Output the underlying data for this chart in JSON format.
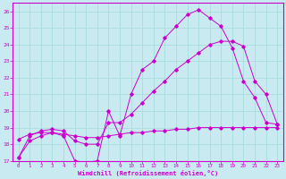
{
  "title": "",
  "xlabel": "Windchill (Refroidissement éolien,°C)",
  "ylabel": "",
  "bg_color": "#c8eaf0",
  "grid_color": "#aadddd",
  "line_color": "#cc00cc",
  "xlim": [
    -0.5,
    23.5
  ],
  "ylim": [
    17,
    26.5
  ],
  "yticks": [
    17,
    18,
    19,
    20,
    21,
    22,
    23,
    24,
    25,
    26
  ],
  "xticks": [
    0,
    1,
    2,
    3,
    4,
    5,
    6,
    7,
    8,
    9,
    10,
    11,
    12,
    13,
    14,
    15,
    16,
    17,
    18,
    19,
    20,
    21,
    22,
    23
  ],
  "series": [
    {
      "x": [
        0,
        1,
        2,
        3,
        4,
        5,
        6,
        7,
        8,
        9,
        10,
        11,
        12,
        13,
        14,
        15,
        16,
        17,
        18,
        19,
        20,
        21,
        22,
        23
      ],
      "y": [
        17.2,
        18.2,
        18.5,
        18.7,
        18.5,
        17.0,
        16.9,
        17.0,
        20.0,
        18.5,
        21.0,
        22.5,
        23.0,
        24.4,
        25.1,
        25.8,
        26.1,
        25.6,
        25.1,
        23.8,
        21.8,
        20.8,
        19.3,
        19.2
      ]
    },
    {
      "x": [
        0,
        1,
        2,
        3,
        4,
        5,
        6,
        7,
        8,
        9,
        10,
        11,
        12,
        13,
        14,
        15,
        16,
        17,
        18,
        19,
        20,
        21,
        22,
        23
      ],
      "y": [
        17.2,
        18.5,
        18.8,
        18.9,
        18.8,
        18.2,
        18.0,
        18.0,
        19.3,
        19.3,
        19.8,
        20.5,
        21.2,
        21.8,
        22.5,
        23.0,
        23.5,
        24.0,
        24.2,
        24.2,
        23.9,
        21.8,
        21.0,
        19.2
      ]
    },
    {
      "x": [
        0,
        1,
        2,
        3,
        4,
        5,
        6,
        7,
        8,
        9,
        10,
        11,
        12,
        13,
        14,
        15,
        16,
        17,
        18,
        19,
        20,
        21,
        22,
        23
      ],
      "y": [
        18.3,
        18.6,
        18.7,
        18.7,
        18.6,
        18.5,
        18.4,
        18.4,
        18.5,
        18.6,
        18.7,
        18.7,
        18.8,
        18.8,
        18.9,
        18.9,
        19.0,
        19.0,
        19.0,
        19.0,
        19.0,
        19.0,
        19.0,
        19.0
      ]
    }
  ]
}
